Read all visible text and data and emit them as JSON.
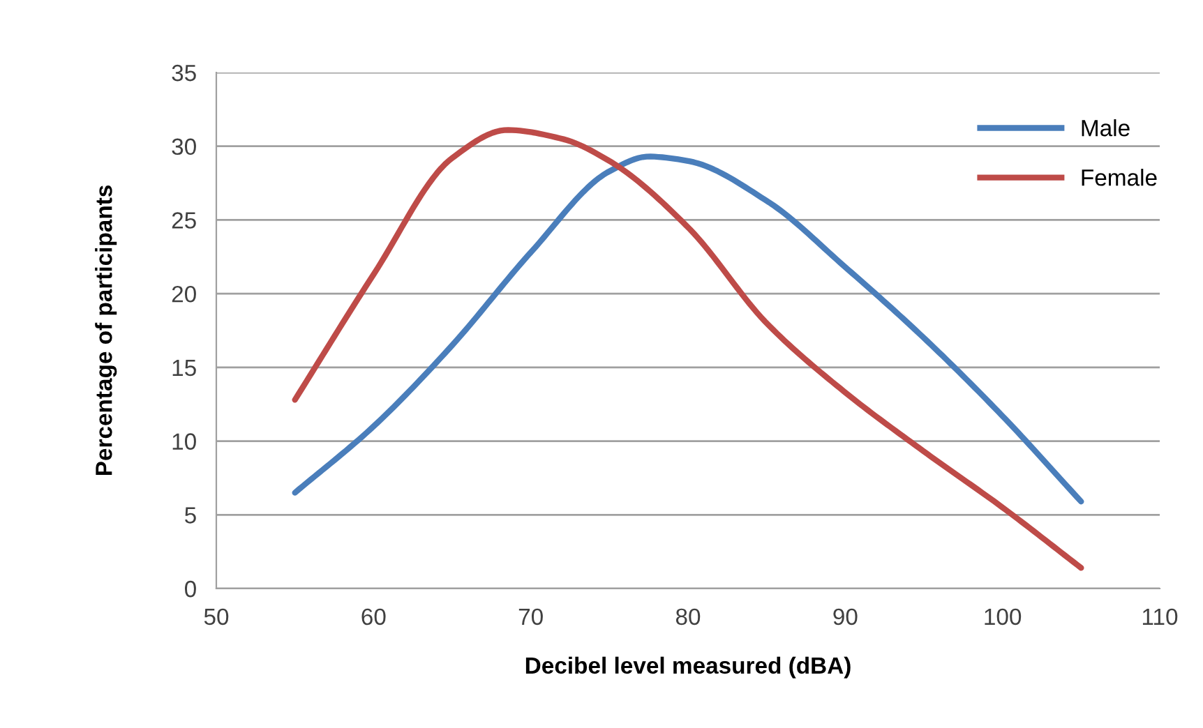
{
  "chart_data": {
    "type": "line",
    "xlabel": "Decibel level measured (dBA)",
    "ylabel": "Percentage of participants",
    "xlim": [
      50,
      110
    ],
    "xticks": [
      50,
      60,
      70,
      80,
      90,
      100,
      110
    ],
    "ylim": [
      0,
      35
    ],
    "yticks": [
      0,
      5,
      10,
      15,
      20,
      25,
      30,
      35
    ],
    "grid": "y",
    "legend": "top right",
    "marker": "none",
    "line_style": "solid",
    "series": [
      {
        "name": "Male",
        "color": "#4a7ebb",
        "x": [
          55,
          60,
          65,
          70,
          75,
          77.5,
          80,
          85,
          90,
          95,
          100,
          105
        ],
        "values": [
          6.5,
          11,
          16.5,
          22.8,
          28.3,
          29.3,
          29,
          26.3,
          21.8,
          17,
          11.7,
          5.9
        ]
      },
      {
        "name": "Female",
        "color": "#be4b48",
        "x": [
          55,
          60,
          65,
          68.5,
          72,
          75,
          80,
          85,
          90,
          95,
          100,
          105
        ],
        "values": [
          12.8,
          21.3,
          29.2,
          31.1,
          30.5,
          29,
          24.5,
          18,
          13.3,
          9.3,
          5.5,
          1.4
        ]
      }
    ]
  }
}
